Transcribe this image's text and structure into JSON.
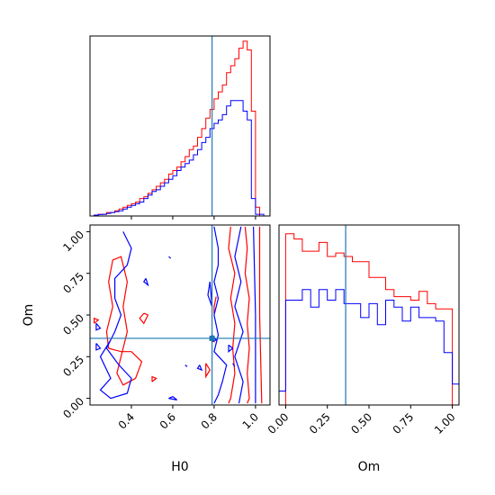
{
  "chart_data": [
    {
      "type": "histogram",
      "panel": "H0 marginal (top-left)",
      "xlim": [
        0.2,
        1.07
      ],
      "truth_value": 0.79,
      "y_ticks_shown": false,
      "series": [
        {
          "color": "#ff0000",
          "step_x": [
            0.2,
            0.22,
            0.24,
            0.26,
            0.28,
            0.3,
            0.32,
            0.34,
            0.36,
            0.38,
            0.4,
            0.42,
            0.44,
            0.46,
            0.48,
            0.5,
            0.52,
            0.54,
            0.56,
            0.58,
            0.6,
            0.62,
            0.64,
            0.66,
            0.68,
            0.7,
            0.72,
            0.74,
            0.76,
            0.78,
            0.8,
            0.82,
            0.84,
            0.86,
            0.88,
            0.9,
            0.92,
            0.94,
            0.96,
            0.98,
            1.0,
            1.02,
            1.04,
            1.06
          ],
          "heights": [
            0.0,
            0.005,
            0.01,
            0.01,
            0.02,
            0.02,
            0.03,
            0.04,
            0.05,
            0.06,
            0.07,
            0.08,
            0.1,
            0.11,
            0.13,
            0.15,
            0.17,
            0.19,
            0.21,
            0.24,
            0.26,
            0.28,
            0.31,
            0.34,
            0.38,
            0.4,
            0.45,
            0.5,
            0.56,
            0.61,
            0.67,
            0.71,
            0.75,
            0.82,
            0.86,
            0.9,
            0.96,
            1.0,
            0.95,
            0.6,
            0.05,
            0.0,
            0.0
          ]
        },
        {
          "color": "#0000ff",
          "step_x": [
            0.2,
            0.22,
            0.24,
            0.26,
            0.28,
            0.3,
            0.32,
            0.34,
            0.36,
            0.38,
            0.4,
            0.42,
            0.44,
            0.46,
            0.48,
            0.5,
            0.52,
            0.54,
            0.56,
            0.58,
            0.6,
            0.62,
            0.64,
            0.66,
            0.68,
            0.7,
            0.72,
            0.74,
            0.76,
            0.78,
            0.8,
            0.82,
            0.84,
            0.86,
            0.88,
            0.9,
            0.92,
            0.94,
            0.96,
            0.98,
            1.0,
            1.02,
            1.04,
            1.06
          ],
          "heights": [
            0.0,
            0.005,
            0.008,
            0.01,
            0.015,
            0.02,
            0.025,
            0.03,
            0.04,
            0.05,
            0.06,
            0.07,
            0.08,
            0.1,
            0.12,
            0.14,
            0.15,
            0.17,
            0.19,
            0.21,
            0.23,
            0.26,
            0.28,
            0.3,
            0.32,
            0.35,
            0.38,
            0.42,
            0.45,
            0.5,
            0.53,
            0.55,
            0.58,
            0.63,
            0.66,
            0.66,
            0.66,
            0.6,
            0.55,
            0.1,
            0.01,
            0.01,
            0.0
          ]
        }
      ],
      "x_ticks": [
        0.4,
        0.6,
        0.8,
        1.0
      ]
    },
    {
      "type": "contour",
      "panel": "H0 vs Om joint (bottom-left)",
      "xlabel": "H0",
      "ylabel": "Om",
      "xlim": [
        0.2,
        1.07
      ],
      "ylim": [
        -0.04,
        1.04
      ],
      "x_ticks": [
        {
          "value": 0.4,
          "label": "0.4"
        },
        {
          "value": 0.6,
          "label": "0.6"
        },
        {
          "value": 0.8,
          "label": "0.8"
        },
        {
          "value": 1.0,
          "label": "1.0"
        }
      ],
      "y_ticks": [
        {
          "value": 0.0,
          "label": "0.00"
        },
        {
          "value": 0.25,
          "label": "0.25"
        },
        {
          "value": 0.5,
          "label": "0.50"
        },
        {
          "value": 0.75,
          "label": "0.75"
        },
        {
          "value": 1.0,
          "label": "1.00"
        }
      ],
      "truth": {
        "x": 0.79,
        "y": 0.36
      },
      "series": [
        {
          "color": "#ff0000",
          "contours": [
            [
              [
                0.88,
                1.03
              ],
              [
                0.87,
                0.9
              ],
              [
                0.9,
                0.75
              ],
              [
                0.88,
                0.6
              ],
              [
                0.9,
                0.45
              ],
              [
                0.89,
                0.3
              ],
              [
                0.9,
                0.15
              ],
              [
                0.88,
                0.0
              ],
              [
                0.87,
                -0.03
              ]
            ],
            [
              [
                0.95,
                1.03
              ],
              [
                0.96,
                0.9
              ],
              [
                0.95,
                0.75
              ],
              [
                0.97,
                0.6
              ],
              [
                0.96,
                0.45
              ],
              [
                0.97,
                0.3
              ],
              [
                0.96,
                0.15
              ],
              [
                0.97,
                0.0
              ],
              [
                0.96,
                -0.03
              ]
            ],
            [
              [
                1.02,
                1.03
              ],
              [
                1.02,
                0.5
              ],
              [
                1.03,
                -0.03
              ]
            ],
            [
              [
                0.29,
                0.3
              ],
              [
                0.28,
                0.4
              ],
              [
                0.31,
                0.55
              ],
              [
                0.29,
                0.7
              ],
              [
                0.31,
                0.83
              ],
              [
                0.35,
                0.85
              ],
              [
                0.38,
                0.7
              ],
              [
                0.36,
                0.55
              ],
              [
                0.38,
                0.4
              ],
              [
                0.36,
                0.3
              ],
              [
                0.33,
                0.15
              ],
              [
                0.36,
                0.08
              ],
              [
                0.42,
                0.12
              ],
              [
                0.45,
                0.22
              ],
              [
                0.4,
                0.28
              ],
              [
                0.35,
                0.28
              ],
              [
                0.29,
                0.3
              ]
            ],
            [
              [
                0.22,
                0.45
              ],
              [
                0.24,
                0.47
              ],
              [
                0.22,
                0.48
              ],
              [
                0.22,
                0.45
              ]
            ],
            [
              [
                0.46,
                0.51
              ],
              [
                0.48,
                0.5
              ],
              [
                0.46,
                0.45
              ],
              [
                0.44,
                0.48
              ],
              [
                0.46,
                0.51
              ]
            ],
            [
              [
                0.5,
                0.1
              ],
              [
                0.52,
                0.12
              ],
              [
                0.5,
                0.13
              ],
              [
                0.5,
                0.1
              ]
            ],
            [
              [
                0.76,
                0.21
              ],
              [
                0.78,
                0.17
              ],
              [
                0.76,
                0.13
              ],
              [
                0.76,
                0.21
              ]
            ],
            [
              [
                0.81,
                0.61
              ],
              [
                0.8,
                0.55
              ],
              [
                0.8,
                0.51
              ]
            ],
            [
              [
                0.79,
                0.37
              ],
              [
                0.8,
                0.34
              ],
              [
                0.78,
                0.35
              ],
              [
                0.79,
                0.37
              ]
            ]
          ]
        },
        {
          "color": "#0000ff",
          "contours": [
            [
              [
                0.36,
                1.0
              ],
              [
                0.4,
                0.9
              ],
              [
                0.38,
                0.8
              ],
              [
                0.32,
                0.72
              ],
              [
                0.32,
                0.6
              ],
              [
                0.35,
                0.5
              ],
              [
                0.32,
                0.4
              ],
              [
                0.28,
                0.3
              ],
              [
                0.34,
                0.2
              ],
              [
                0.4,
                0.12
              ],
              [
                0.38,
                0.03
              ],
              [
                0.3,
                0.0
              ],
              [
                0.25,
                0.05
              ],
              [
                0.3,
                0.12
              ],
              [
                0.25,
                0.25
              ],
              [
                0.3,
                0.35
              ]
            ],
            [
              [
                0.8,
                1.03
              ],
              [
                0.82,
                0.9
              ],
              [
                0.82,
                0.8
              ],
              [
                0.8,
                0.7
              ],
              [
                0.82,
                0.6
              ],
              [
                0.8,
                0.5
              ],
              [
                0.82,
                0.38
              ],
              [
                0.8,
                0.28
              ],
              [
                0.86,
                0.2
              ],
              [
                0.84,
                0.1
              ],
              [
                0.82,
                0.02
              ],
              [
                0.8,
                -0.03
              ]
            ],
            [
              [
                0.93,
                1.03
              ],
              [
                0.9,
                0.85
              ],
              [
                0.93,
                0.7
              ],
              [
                0.9,
                0.55
              ],
              [
                0.94,
                0.4
              ],
              [
                0.9,
                0.25
              ],
              [
                0.94,
                0.1
              ],
              [
                0.92,
                -0.03
              ]
            ],
            [
              [
                0.99,
                1.03
              ],
              [
                1.0,
                0.5
              ],
              [
                1.0,
                -0.03
              ]
            ],
            [
              [
                0.78,
                0.7
              ],
              [
                0.77,
                0.62
              ],
              [
                0.79,
                0.55
              ],
              [
                0.78,
                0.7
              ]
            ],
            [
              [
                0.23,
                0.45
              ],
              [
                0.25,
                0.42
              ],
              [
                0.23,
                0.41
              ],
              [
                0.23,
                0.45
              ]
            ],
            [
              [
                0.23,
                0.33
              ],
              [
                0.25,
                0.3
              ],
              [
                0.23,
                0.29
              ],
              [
                0.23,
                0.33
              ]
            ],
            [
              [
                0.47,
                0.72
              ],
              [
                0.48,
                0.68
              ],
              [
                0.46,
                0.7
              ],
              [
                0.47,
                0.72
              ]
            ],
            [
              [
                0.58,
                0.85
              ],
              [
                0.59,
                0.84
              ],
              [
                0.58,
                0.85
              ]
            ],
            [
              [
                0.66,
                0.2
              ],
              [
                0.67,
                0.19
              ],
              [
                0.66,
                0.2
              ]
            ],
            [
              [
                0.73,
                0.2
              ],
              [
                0.74,
                0.17
              ],
              [
                0.72,
                0.18
              ],
              [
                0.73,
                0.2
              ]
            ],
            [
              [
                0.79,
                0.38
              ],
              [
                0.81,
                0.35
              ],
              [
                0.79,
                0.34
              ],
              [
                0.79,
                0.38
              ]
            ],
            [
              [
                0.87,
                0.32
              ],
              [
                0.89,
                0.3
              ],
              [
                0.87,
                0.28
              ],
              [
                0.87,
                0.32
              ]
            ],
            [
              [
                0.89,
                0.21
              ],
              [
                0.9,
                0.19
              ],
              [
                0.89,
                0.21
              ]
            ],
            [
              [
                0.58,
                0.0
              ],
              [
                0.62,
                -0.01
              ],
              [
                0.6,
                0.01
              ],
              [
                0.58,
                0.0
              ]
            ]
          ]
        }
      ]
    },
    {
      "type": "histogram",
      "panel": "Om marginal (bottom-right)",
      "xlabel": "Om",
      "xlim": [
        -0.04,
        1.04
      ],
      "truth_value": 0.36,
      "y_ticks_shown": false,
      "x_ticks": [
        {
          "value": 0.0,
          "label": "0.00"
        },
        {
          "value": 0.25,
          "label": "0.25"
        },
        {
          "value": 0.5,
          "label": "0.50"
        },
        {
          "value": 0.75,
          "label": "0.75"
        },
        {
          "value": 1.0,
          "label": "1.00"
        }
      ],
      "series": [
        {
          "color": "#ff0000",
          "step_x": [
            -0.04,
            0.0,
            0.05,
            0.1,
            0.15,
            0.2,
            0.25,
            0.3,
            0.35,
            0.4,
            0.45,
            0.5,
            0.55,
            0.6,
            0.65,
            0.7,
            0.75,
            0.8,
            0.85,
            0.9,
            0.95,
            1.0,
            1.04
          ],
          "heights": [
            0.0,
            0.98,
            0.95,
            0.88,
            0.88,
            0.93,
            0.85,
            0.87,
            0.85,
            0.82,
            0.82,
            0.73,
            0.73,
            0.66,
            0.62,
            0.62,
            0.6,
            0.65,
            0.58,
            0.55,
            0.55,
            0.0
          ]
        },
        {
          "color": "#0000ff",
          "step_x": [
            -0.04,
            0.0,
            0.05,
            0.1,
            0.15,
            0.2,
            0.25,
            0.3,
            0.35,
            0.4,
            0.45,
            0.5,
            0.55,
            0.6,
            0.65,
            0.7,
            0.75,
            0.8,
            0.85,
            0.9,
            0.95,
            1.0,
            1.04
          ],
          "heights": [
            0.08,
            0.6,
            0.6,
            0.66,
            0.56,
            0.66,
            0.6,
            0.66,
            0.58,
            0.58,
            0.5,
            0.58,
            0.46,
            0.6,
            0.56,
            0.48,
            0.56,
            0.5,
            0.5,
            0.48,
            0.3,
            0.12
          ]
        }
      ]
    }
  ]
}
